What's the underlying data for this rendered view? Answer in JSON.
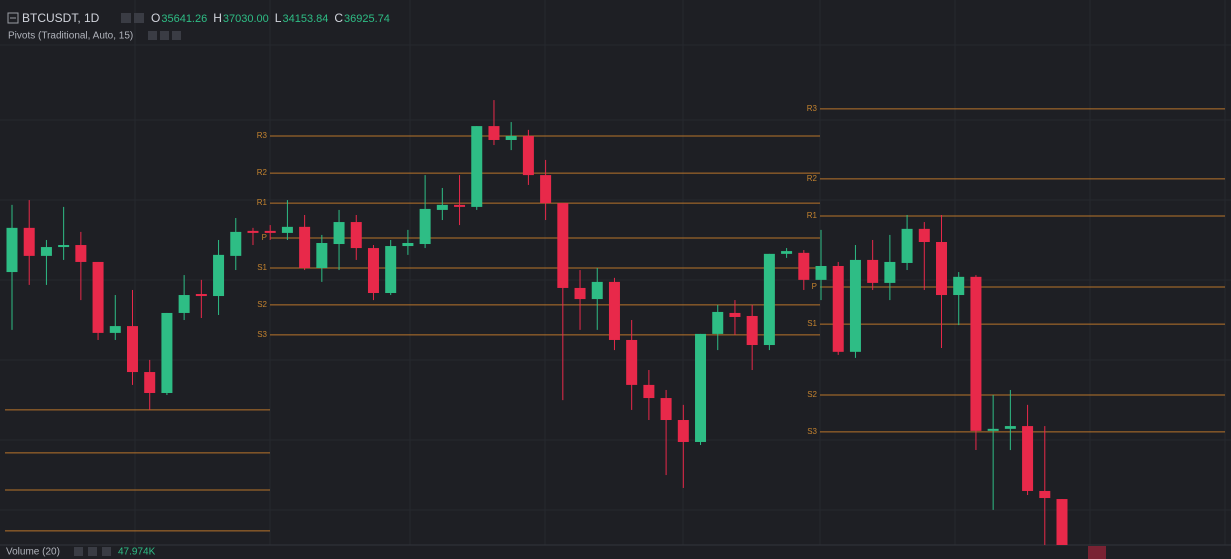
{
  "chart_data": {
    "type": "candlestick",
    "title": "BTCUSDT, 1D",
    "ohlc_header": [
      {
        "label": "O",
        "value": "35641.26"
      },
      {
        "label": "H",
        "value": "37030.00"
      },
      {
        "label": "L",
        "value": "34153.84"
      },
      {
        "label": "C",
        "value": "36925.74"
      }
    ],
    "indicator": "Pivots (Traditional, Auto, 15)",
    "volume_title": "Volume (20)",
    "volume_value": "47.974K",
    "ylim": [
      32000,
      52000
    ],
    "up_color": "#2ebd85",
    "down_color": "#e8294a",
    "pivot_color": "#b8742a",
    "open": [
      42810,
      44560,
      43450,
      43800,
      43880,
      43210,
      40400,
      40670,
      38850,
      38020,
      41190,
      41940,
      41860,
      43450,
      44440,
      44440,
      44360,
      44600,
      42970,
      43920,
      44790,
      43760,
      41980,
      43840,
      43920,
      45270,
      45470,
      45390,
      48590,
      48040,
      48200,
      46650,
      45540,
      42180,
      41740,
      42420,
      40120,
      38340,
      37820,
      36950,
      36080,
      40360,
      41190,
      41070,
      39920,
      43530,
      43570,
      42500,
      43050,
      39650,
      43290,
      42380,
      43170,
      44520,
      44000,
      41900,
      42620,
      36520,
      36600,
      36710,
      34140,
      33820
    ],
    "high": [
      45470,
      45660,
      44080,
      45390,
      44400,
      43210,
      41900,
      42100,
      39330,
      41190,
      42690,
      42500,
      44080,
      44950,
      44560,
      44670,
      45660,
      45070,
      44280,
      45270,
      45070,
      43880,
      44080,
      44480,
      46650,
      46140,
      46650,
      48590,
      49620,
      48750,
      48440,
      47250,
      45540,
      42890,
      42970,
      42580,
      40910,
      38930,
      38140,
      37550,
      40360,
      41510,
      41700,
      41510,
      43530,
      43760,
      43680,
      44480,
      43210,
      43880,
      44080,
      44280,
      45070,
      44790,
      45070,
      42810,
      42690,
      37940,
      38140,
      37550,
      36710,
      33820
    ],
    "low": [
      40520,
      42300,
      42300,
      43290,
      41700,
      40120,
      40120,
      38340,
      37350,
      37940,
      40910,
      40990,
      41110,
      42890,
      43880,
      44080,
      44080,
      42890,
      42420,
      42890,
      43290,
      41700,
      41900,
      43490,
      43760,
      44870,
      44670,
      45270,
      47840,
      47640,
      46260,
      44870,
      37740,
      40520,
      40520,
      39720,
      37350,
      36950,
      34770,
      34260,
      35960,
      39720,
      40320,
      38930,
      39720,
      43370,
      42100,
      41700,
      39530,
      39410,
      42100,
      41700,
      42890,
      42100,
      39800,
      40710,
      35760,
      33390,
      35760,
      33980,
      32000,
      32000
    ],
    "close": [
      44560,
      43450,
      43800,
      43880,
      43210,
      40400,
      40670,
      38850,
      38020,
      41190,
      41900,
      41860,
      43490,
      44400,
      44360,
      44360,
      44600,
      42970,
      43960,
      44790,
      43760,
      41980,
      43840,
      43960,
      45310,
      45470,
      45390,
      48590,
      48040,
      48200,
      46650,
      45540,
      42180,
      41740,
      42420,
      40120,
      38340,
      37820,
      36950,
      36080,
      40360,
      41230,
      41030,
      39920,
      43530,
      43640,
      42500,
      43050,
      39650,
      43290,
      42380,
      43210,
      44520,
      44000,
      41900,
      42620,
      36520,
      36600,
      36710,
      34140,
      33860,
      32000
    ],
    "pivots": [
      {
        "labels": [
          null,
          null,
          null,
          null
        ],
        "levels": [
          37350,
          35650,
          34180,
          32560
        ]
      },
      {
        "labels": [
          "R3",
          "R2",
          "R1",
          "P",
          "S1",
          "S2",
          "S3"
        ],
        "levels": [
          48200,
          46730,
          45540,
          44160,
          42970,
          41510,
          40320
        ]
      },
      {
        "labels": [
          "R3",
          "R2",
          "R1",
          "P",
          "S1",
          "S2",
          "S3"
        ],
        "levels": [
          49270,
          46500,
          45030,
          42220,
          40750,
          37940,
          36480
        ]
      }
    ]
  }
}
